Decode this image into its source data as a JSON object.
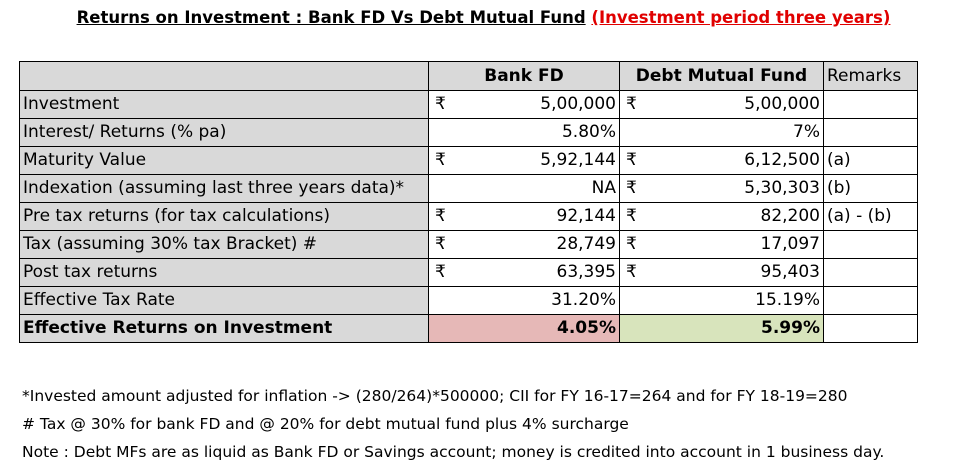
{
  "title": {
    "main": "Returns on Investment : Bank FD Vs Debt Mutual Fund",
    "highlight": "(Investment period three years)",
    "highlight_color": "#e00000"
  },
  "table": {
    "headers": {
      "bank": "Bank FD",
      "debt": "Debt Mutual Fund",
      "remarks": "Remarks"
    },
    "rows": [
      {
        "label": "Investment",
        "bank_cur": "₹",
        "bank": "5,00,000",
        "debt_cur": "₹",
        "debt": "5,00,000",
        "remark": ""
      },
      {
        "label": "Interest/ Returns (% pa)",
        "bank_cur": "",
        "bank": "5.80%",
        "debt_cur": "",
        "debt": "7%",
        "remark": ""
      },
      {
        "label": "Maturity Value",
        "bank_cur": "₹",
        "bank": "5,92,144",
        "debt_cur": "₹",
        "debt": "6,12,500",
        "remark": "(a)"
      },
      {
        "label": "Indexation (assuming last three years data)*",
        "bank_cur": "",
        "bank": "NA",
        "debt_cur": "₹",
        "debt": "5,30,303",
        "remark": "(b)"
      },
      {
        "label": "Pre tax returns (for tax calculations)",
        "bank_cur": "₹",
        "bank": "92,144",
        "debt_cur": "₹",
        "debt": "82,200",
        "remark": "(a) - (b)"
      },
      {
        "label": "Tax (assuming 30% tax Bracket) #",
        "bank_cur": "₹",
        "bank": "28,749",
        "debt_cur": "₹",
        "debt": "17,097",
        "remark": ""
      },
      {
        "label": "Post tax returns",
        "bank_cur": "₹",
        "bank": "63,395",
        "debt_cur": "₹",
        "debt": "95,403",
        "remark": ""
      },
      {
        "label": "Effective Tax Rate",
        "bank_cur": "",
        "bank": "31.20%",
        "debt_cur": "",
        "debt": "15.19%",
        "remark": ""
      },
      {
        "label": "Effective Returns on Investment",
        "bank_cur": "",
        "bank": "4.05%",
        "debt_cur": "",
        "debt": "5.99%",
        "remark": ""
      }
    ],
    "colors": {
      "header_grey": "#d9d9d9",
      "bank_highlight": "#e6b8b7",
      "debt_highlight": "#d8e4bc"
    }
  },
  "notes": [
    "*Invested amount adjusted for inflation -> (280/264)*500000; CII for FY 16-17=264 and for FY 18-19=280",
    "# Tax @ 30% for bank FD and @ 20% for debt mutual fund plus 4% surcharge",
    "Note : Debt MFs are as liquid as Bank FD or Savings account; money is credited into account in 1 business day."
  ]
}
